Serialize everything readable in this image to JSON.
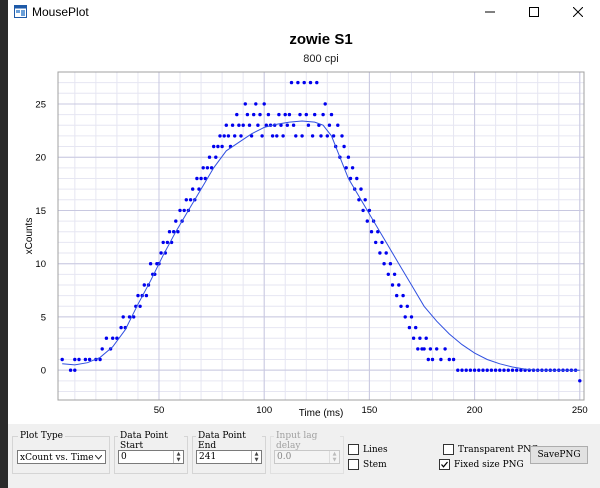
{
  "window": {
    "title": "MousePlot"
  },
  "chart_data": {
    "type": "scatter",
    "title": "zowie S1",
    "subtitle": "800 cpi",
    "xlabel": "Time (ms)",
    "ylabel": "xCounts",
    "xlim": [
      2,
      252
    ],
    "ylim": [
      -2.8,
      28
    ],
    "x_ticks": [
      50,
      100,
      150,
      200,
      250
    ],
    "y_ticks": [
      0,
      5,
      10,
      15,
      20,
      25
    ],
    "grid": true,
    "series": [
      {
        "kind": "scatter",
        "color": "#0000ee",
        "points": [
          [
            4,
            1
          ],
          [
            8,
            0
          ],
          [
            10,
            0
          ],
          [
            10,
            1
          ],
          [
            12,
            1
          ],
          [
            15,
            1
          ],
          [
            17,
            1
          ],
          [
            20,
            1
          ],
          [
            22,
            1
          ],
          [
            23,
            2
          ],
          [
            25,
            3
          ],
          [
            27,
            2
          ],
          [
            28,
            3
          ],
          [
            30,
            3
          ],
          [
            32,
            4
          ],
          [
            33,
            5
          ],
          [
            34,
            4
          ],
          [
            36,
            5
          ],
          [
            38,
            5
          ],
          [
            39,
            6
          ],
          [
            40,
            7
          ],
          [
            41,
            6
          ],
          [
            42,
            7
          ],
          [
            43,
            8
          ],
          [
            44,
            7
          ],
          [
            45,
            8
          ],
          [
            46,
            10
          ],
          [
            47,
            9
          ],
          [
            48,
            9
          ],
          [
            49,
            10
          ],
          [
            50,
            10
          ],
          [
            51,
            11
          ],
          [
            52,
            12
          ],
          [
            53,
            11
          ],
          [
            54,
            12
          ],
          [
            55,
            13
          ],
          [
            56,
            12
          ],
          [
            57,
            13
          ],
          [
            58,
            14
          ],
          [
            59,
            13
          ],
          [
            60,
            15
          ],
          [
            61,
            14
          ],
          [
            62,
            15
          ],
          [
            63,
            16
          ],
          [
            64,
            15
          ],
          [
            65,
            16
          ],
          [
            66,
            17
          ],
          [
            67,
            16
          ],
          [
            68,
            18
          ],
          [
            69,
            17
          ],
          [
            70,
            18
          ],
          [
            71,
            19
          ],
          [
            72,
            18
          ],
          [
            73,
            19
          ],
          [
            74,
            20
          ],
          [
            75,
            19
          ],
          [
            76,
            21
          ],
          [
            77,
            20
          ],
          [
            78,
            21
          ],
          [
            79,
            22
          ],
          [
            80,
            21
          ],
          [
            81,
            22
          ],
          [
            82,
            23
          ],
          [
            83,
            22
          ],
          [
            84,
            21
          ],
          [
            85,
            23
          ],
          [
            86,
            22
          ],
          [
            87,
            24
          ],
          [
            88,
            23
          ],
          [
            89,
            22
          ],
          [
            90,
            23
          ],
          [
            91,
            25
          ],
          [
            92,
            24
          ],
          [
            93,
            23
          ],
          [
            94,
            22
          ],
          [
            95,
            24
          ],
          [
            96,
            25
          ],
          [
            97,
            23
          ],
          [
            98,
            24
          ],
          [
            99,
            22
          ],
          [
            100,
            25
          ],
          [
            101,
            23
          ],
          [
            102,
            24
          ],
          [
            103,
            23
          ],
          [
            104,
            22
          ],
          [
            105,
            23
          ],
          [
            106,
            22
          ],
          [
            107,
            24
          ],
          [
            108,
            23
          ],
          [
            109,
            22
          ],
          [
            110,
            24
          ],
          [
            111,
            23
          ],
          [
            112,
            24
          ],
          [
            113,
            27
          ],
          [
            114,
            23
          ],
          [
            115,
            22
          ],
          [
            116,
            27
          ],
          [
            117,
            24
          ],
          [
            118,
            22
          ],
          [
            119,
            27
          ],
          [
            120,
            24
          ],
          [
            121,
            23
          ],
          [
            122,
            27
          ],
          [
            123,
            22
          ],
          [
            124,
            24
          ],
          [
            125,
            27
          ],
          [
            126,
            23
          ],
          [
            127,
            22
          ],
          [
            128,
            24
          ],
          [
            129,
            25
          ],
          [
            130,
            22
          ],
          [
            131,
            23
          ],
          [
            132,
            24
          ],
          [
            133,
            22
          ],
          [
            134,
            21
          ],
          [
            135,
            23
          ],
          [
            136,
            20
          ],
          [
            137,
            22
          ],
          [
            138,
            21
          ],
          [
            139,
            19
          ],
          [
            140,
            20
          ],
          [
            141,
            18
          ],
          [
            142,
            19
          ],
          [
            143,
            17
          ],
          [
            144,
            18
          ],
          [
            145,
            16
          ],
          [
            146,
            17
          ],
          [
            147,
            15
          ],
          [
            148,
            16
          ],
          [
            149,
            14
          ],
          [
            150,
            15
          ],
          [
            151,
            13
          ],
          [
            152,
            14
          ],
          [
            153,
            12
          ],
          [
            154,
            13
          ],
          [
            155,
            11
          ],
          [
            156,
            12
          ],
          [
            157,
            10
          ],
          [
            158,
            11
          ],
          [
            159,
            9
          ],
          [
            160,
            10
          ],
          [
            161,
            8
          ],
          [
            162,
            9
          ],
          [
            163,
            7
          ],
          [
            164,
            8
          ],
          [
            165,
            6
          ],
          [
            166,
            7
          ],
          [
            167,
            5
          ],
          [
            168,
            6
          ],
          [
            169,
            4
          ],
          [
            170,
            5
          ],
          [
            171,
            3
          ],
          [
            172,
            4
          ],
          [
            173,
            2
          ],
          [
            174,
            3
          ],
          [
            175,
            2
          ],
          [
            176,
            2
          ],
          [
            177,
            3
          ],
          [
            178,
            1
          ],
          [
            179,
            2
          ],
          [
            180,
            1
          ],
          [
            182,
            2
          ],
          [
            184,
            1
          ],
          [
            186,
            2
          ],
          [
            188,
            1
          ],
          [
            190,
            1
          ],
          [
            192,
            0
          ],
          [
            194,
            0
          ],
          [
            196,
            0
          ],
          [
            198,
            0
          ],
          [
            200,
            0
          ],
          [
            202,
            0
          ],
          [
            204,
            0
          ],
          [
            206,
            0
          ],
          [
            208,
            0
          ],
          [
            210,
            0
          ],
          [
            212,
            0
          ],
          [
            214,
            0
          ],
          [
            216,
            0
          ],
          [
            218,
            0
          ],
          [
            220,
            0
          ],
          [
            222,
            0
          ],
          [
            224,
            0
          ],
          [
            226,
            0
          ],
          [
            228,
            0
          ],
          [
            230,
            0
          ],
          [
            232,
            0
          ],
          [
            234,
            0
          ],
          [
            236,
            0
          ],
          [
            238,
            0
          ],
          [
            240,
            0
          ],
          [
            242,
            0
          ],
          [
            244,
            0
          ],
          [
            246,
            0
          ],
          [
            248,
            0
          ],
          [
            250,
            -1
          ]
        ]
      },
      {
        "kind": "line",
        "color": "#3050e0",
        "points": [
          [
            4,
            0.6
          ],
          [
            10,
            0.5
          ],
          [
            16,
            0.7
          ],
          [
            22,
            1.2
          ],
          [
            28,
            2.2
          ],
          [
            34,
            3.8
          ],
          [
            40,
            6.2
          ],
          [
            46,
            8.4
          ],
          [
            52,
            10.8
          ],
          [
            58,
            13.0
          ],
          [
            64,
            15.0
          ],
          [
            70,
            17.0
          ],
          [
            76,
            19.0
          ],
          [
            82,
            20.6
          ],
          [
            88,
            21.4
          ],
          [
            94,
            22.2
          ],
          [
            100,
            22.8
          ],
          [
            106,
            23.1
          ],
          [
            112,
            23.3
          ],
          [
            118,
            23.4
          ],
          [
            124,
            23.3
          ],
          [
            128,
            23.0
          ],
          [
            132,
            22.0
          ],
          [
            136,
            20.0
          ],
          [
            140,
            18.0
          ],
          [
            146,
            16.0
          ],
          [
            152,
            14.0
          ],
          [
            158,
            12.0
          ],
          [
            164,
            10.0
          ],
          [
            170,
            8.0
          ],
          [
            176,
            6.0
          ],
          [
            182,
            4.6
          ],
          [
            188,
            3.4
          ],
          [
            194,
            2.4
          ],
          [
            200,
            1.6
          ],
          [
            206,
            1.0
          ],
          [
            212,
            0.6
          ],
          [
            218,
            0.3
          ],
          [
            224,
            0.1
          ],
          [
            230,
            0.0
          ],
          [
            240,
            0.0
          ],
          [
            250,
            0.0
          ]
        ]
      }
    ]
  },
  "controls": {
    "plot_type": {
      "label": "Plot Type",
      "selected": "xCount vs. Time"
    },
    "start": {
      "label": "Data Point Start",
      "value": "0"
    },
    "end": {
      "label": "Data Point End",
      "value": "241"
    },
    "lag": {
      "label": "Input lag delay",
      "value": "0.0"
    },
    "lines": {
      "label": "Lines",
      "checked": false
    },
    "stem": {
      "label": "Stem",
      "checked": false
    },
    "transparent": {
      "label": "Transparent PNG",
      "checked": false
    },
    "fixed": {
      "label": "Fixed size PNG",
      "checked": true
    },
    "save_label": "SavePNG"
  }
}
